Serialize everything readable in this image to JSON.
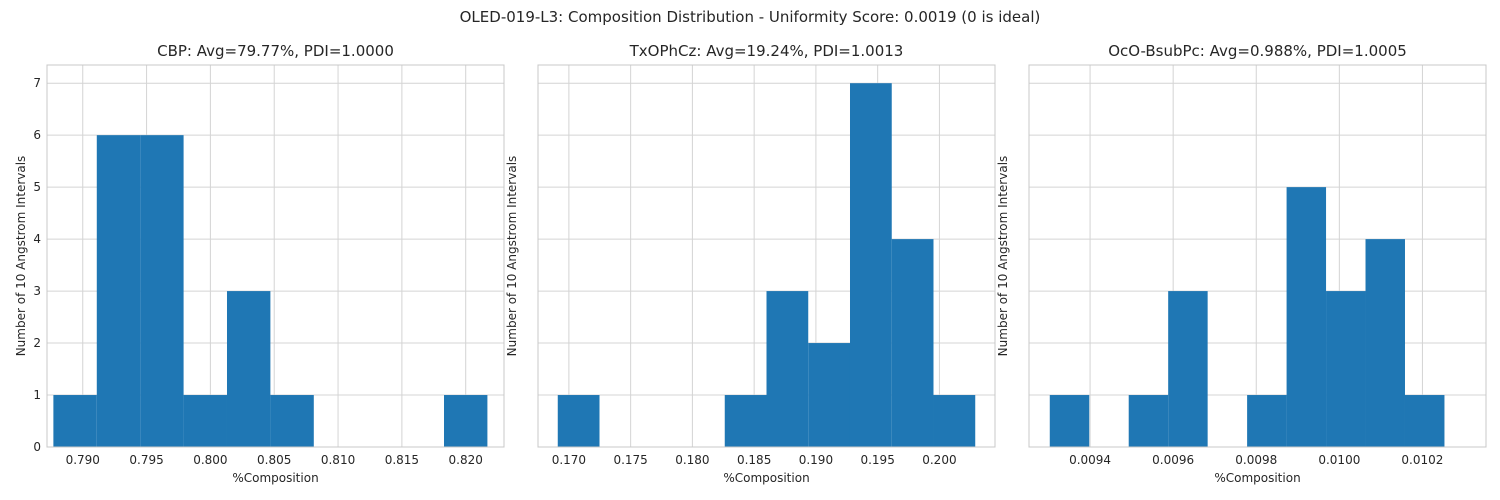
{
  "figure": {
    "suptitle": "OLED-019-L3: Composition Distribution - Uniformity Score: 0.0019 (0 is ideal)"
  },
  "colors": {
    "bar": "#1f77b4",
    "grid": "#d4d4d4",
    "frame": "#c8c8c8",
    "text": "#262626",
    "background": "#ffffff"
  },
  "chart_data": [
    {
      "type": "bar",
      "title": "CBP: Avg=79.77%, PDI=1.0000",
      "xlabel": "%Composition",
      "ylabel": "Number of 10 Angstrom Intervals",
      "xlim": [
        0.7872,
        0.823
      ],
      "ylim": [
        0,
        7.35
      ],
      "xticks": [
        0.79,
        0.795,
        0.8,
        0.805,
        0.81,
        0.815,
        0.82
      ],
      "xtick_labels": [
        "0.790",
        "0.795",
        "0.800",
        "0.805",
        "0.810",
        "0.815",
        "0.820"
      ],
      "yticks": [
        0,
        1,
        2,
        3,
        4,
        5,
        6,
        7
      ],
      "ytick_labels": [
        "0",
        "1",
        "2",
        "3",
        "4",
        "5",
        "6",
        "7"
      ],
      "show_yticklabels": true,
      "grid": true,
      "bin_edges": [
        0.7877,
        0.7911,
        0.7945,
        0.7979,
        0.8013,
        0.8047,
        0.8081,
        0.8115,
        0.8149,
        0.8183,
        0.8217
      ],
      "values": [
        1,
        6,
        6,
        1,
        3,
        1,
        0,
        0,
        0,
        1
      ]
    },
    {
      "type": "bar",
      "title": "TxOPhCz: Avg=19.24%, PDI=1.0013",
      "xlabel": "%Composition",
      "ylabel": "Number of 10 Angstrom Intervals",
      "xlim": [
        0.1675,
        0.2045
      ],
      "ylim": [
        0,
        7.35
      ],
      "xticks": [
        0.17,
        0.175,
        0.18,
        0.185,
        0.19,
        0.195,
        0.2
      ],
      "xtick_labels": [
        "0.170",
        "0.175",
        "0.180",
        "0.185",
        "0.190",
        "0.195",
        "0.200"
      ],
      "yticks": [
        0,
        1,
        2,
        3,
        4,
        5,
        6,
        7
      ],
      "ytick_labels": [
        "0",
        "1",
        "2",
        "3",
        "4",
        "5",
        "6",
        "7"
      ],
      "show_yticklabels": false,
      "grid": true,
      "bin_edges": [
        0.1691,
        0.17248,
        0.17586,
        0.17924,
        0.18262,
        0.186,
        0.18938,
        0.19276,
        0.19614,
        0.19952,
        0.2029
      ],
      "values": [
        1,
        0,
        0,
        0,
        1,
        3,
        2,
        7,
        4,
        1
      ]
    },
    {
      "type": "bar",
      "title": "OcO-BsubPc: Avg=0.988%, PDI=1.0005",
      "xlabel": "%Composition",
      "ylabel": "Number of 10 Angstrom Intervals",
      "xlim": [
        0.009253,
        0.010353
      ],
      "ylim": [
        0,
        7.35
      ],
      "xticks": [
        0.0094,
        0.0096,
        0.0098,
        0.01,
        0.0102
      ],
      "xtick_labels": [
        "0.0094",
        "0.0096",
        "0.0098",
        "0.0100",
        "0.0102"
      ],
      "yticks": [
        0,
        1,
        2,
        3,
        4,
        5,
        6,
        7
      ],
      "ytick_labels": [
        "0",
        "1",
        "2",
        "3",
        "4",
        "5",
        "6",
        "7"
      ],
      "show_yticklabels": false,
      "grid": true,
      "bin_edges": [
        0.009303,
        0.009398,
        0.009493,
        0.009588,
        0.009683,
        0.009778,
        0.009873,
        0.009968,
        0.010063,
        0.010158,
        0.010253
      ],
      "values": [
        1,
        0,
        1,
        3,
        0,
        1,
        5,
        3,
        4,
        1
      ]
    }
  ]
}
